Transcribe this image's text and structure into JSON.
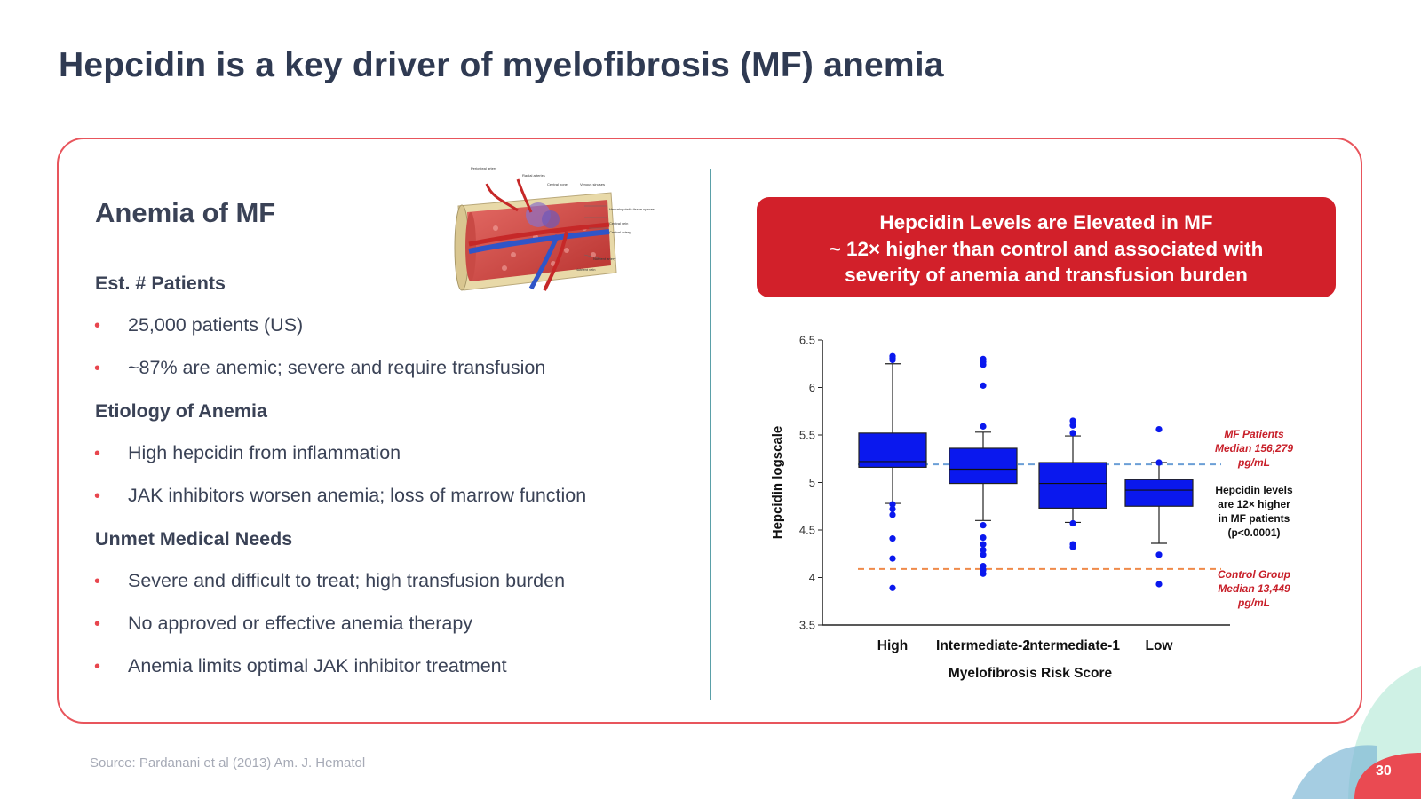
{
  "slide": {
    "title": "Hepcidin is a key driver of myelofibrosis (MF) anemia",
    "source": "Source: Pardanani et al (2013) Am. J. Hematol",
    "page_number": "30"
  },
  "left": {
    "heading": "Anemia of MF",
    "sections": [
      {
        "title": "Est. # Patients",
        "bullets": [
          "25,000 patients (US)",
          "~87% are anemic; severe and require transfusion"
        ]
      },
      {
        "title": "Etiology of Anemia",
        "bullets": [
          "High hepcidin from inflammation",
          "JAK inhibitors worsen anemia; loss of marrow function"
        ]
      },
      {
        "title": "Unmet Medical Needs",
        "bullets": [
          "Severe and difficult to treat; high transfusion burden",
          "No approved or effective anemia therapy",
          "Anemia limits optimal JAK inhibitor treatment"
        ]
      }
    ],
    "bullet_glyph": "•",
    "illustration_labels": [
      "Periosteal artery",
      "Radial arteries",
      "Central bone",
      "Venous sinuses",
      "Hematopoietic tissue spaces",
      "Central vein",
      "Central artery",
      "Nutrient artery",
      "Nutrient vein"
    ]
  },
  "banner": {
    "lines": [
      "Hepcidin Levels are Elevated in MF",
      "~ 12× higher than control and associated with",
      "severity of anemia and transfusion burden"
    ],
    "color": "#d2202a"
  },
  "chart_data": {
    "type": "box",
    "xlabel": "Myelofibrosis Risk Score",
    "ylabel": "Hepcidin logscale",
    "ylim": [
      3.5,
      6.5
    ],
    "yticks": [
      "6.5",
      "6",
      "5.5",
      "5",
      "4.5",
      "4",
      "3.5"
    ],
    "box_color": "#0a18ee",
    "categories": [
      "High",
      "Intermediate-2",
      "Intermediate-1",
      "Low"
    ],
    "boxes": [
      {
        "category": "High",
        "whisker_low": 4.78,
        "q1": 5.16,
        "median": 5.22,
        "q3": 5.52,
        "whisker_high": 6.25,
        "outliers": [
          6.33,
          6.31,
          6.29,
          4.77,
          4.72,
          4.66,
          4.41,
          4.2,
          3.89
        ]
      },
      {
        "category": "Intermediate-2",
        "whisker_low": 4.6,
        "q1": 4.99,
        "median": 5.14,
        "q3": 5.36,
        "whisker_high": 5.53,
        "outliers": [
          6.3,
          6.27,
          6.24,
          6.02,
          5.59,
          4.55,
          4.42,
          4.35,
          4.29,
          4.24,
          4.12,
          4.08,
          4.04
        ]
      },
      {
        "category": "Intermediate-1",
        "whisker_low": 4.58,
        "q1": 4.73,
        "median": 4.99,
        "q3": 5.21,
        "whisker_high": 5.49,
        "outliers": [
          5.65,
          5.6,
          5.52,
          4.57,
          4.35,
          4.32
        ]
      },
      {
        "category": "Low",
        "whisker_low": 4.36,
        "q1": 4.75,
        "median": 4.92,
        "q3": 5.03,
        "whisker_high": 5.21,
        "outliers": [
          5.56,
          5.21,
          4.24,
          3.93
        ]
      }
    ],
    "reference_lines": [
      {
        "value": 5.19,
        "color": "#6b9fd6",
        "label_lines": [
          "MF Patients",
          "Median 156,279",
          "pg/mL"
        ],
        "label_color": "#c8202a"
      },
      {
        "value": 4.09,
        "color": "#ef8a4a",
        "label_lines": [
          "Control Group",
          "Median 13,449",
          "pg/mL"
        ],
        "label_color": "#c8202a"
      }
    ],
    "annotation_lines": [
      "Hepcidin levels",
      "are 12× higher",
      "in MF patients",
      "(p<0.0001)"
    ]
  }
}
